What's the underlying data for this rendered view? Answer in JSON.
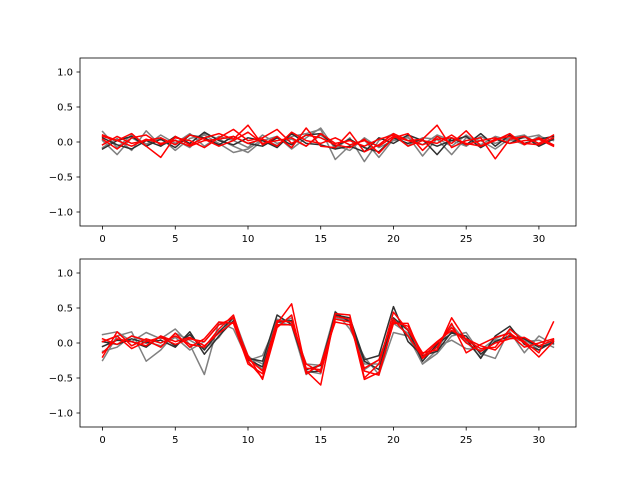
{
  "chart_data": [
    {
      "type": "line",
      "title": "",
      "xlabel": "",
      "ylabel": "",
      "xlim": [
        -1.55,
        32.55
      ],
      "ylim": [
        -1.2,
        1.2
      ],
      "xticks": [
        0,
        5,
        10,
        15,
        20,
        25,
        30
      ],
      "yticks": [
        -1.0,
        -0.5,
        0.0,
        0.5,
        1.0
      ],
      "grid": false,
      "x": [
        0,
        1,
        2,
        3,
        4,
        5,
        6,
        7,
        8,
        9,
        10,
        11,
        12,
        13,
        14,
        15,
        16,
        17,
        18,
        19,
        20,
        21,
        22,
        23,
        24,
        25,
        26,
        27,
        28,
        29,
        30,
        31
      ],
      "series": [
        {
          "color": "#808080",
          "values": [
            0.15,
            -0.08,
            0.1,
            -0.03,
            0.06,
            -0.12,
            0.05,
            0.1,
            -0.02,
            -0.15,
            -0.1,
            0.04,
            -0.05,
            0.08,
            0.12,
            0.18,
            -0.25,
            -0.05,
            0.03,
            -0.22,
            0.04,
            0.08,
            -0.2,
            0.05,
            -0.06,
            0.1,
            -0.04,
            0.08,
            0.02,
            0.06,
            0.1,
            -0.05
          ]
        },
        {
          "color": "#808080",
          "values": [
            -0.08,
            0.05,
            -0.12,
            0.16,
            -0.05,
            0.03,
            -0.08,
            0.12,
            0.04,
            -0.06,
            -0.15,
            0.02,
            0.08,
            -0.1,
            0.06,
            0.2,
            -0.1,
            0.06,
            -0.28,
            0.02,
            0.12,
            -0.05,
            0.06,
            0.04,
            -0.18,
            0.06,
            0.02,
            -0.1,
            0.05,
            -0.04,
            0.08,
            0.02
          ]
        },
        {
          "color": "#808080",
          "values": [
            0.02,
            -0.18,
            0.06,
            -0.05,
            0.1,
            -0.02,
            0.12,
            -0.06,
            0.08,
            0.02,
            -0.08,
            0.1,
            -0.02,
            0.04,
            -0.06,
            0.1,
            -0.05,
            -0.12,
            0.06,
            -0.08,
            0.02,
            0.06,
            -0.04,
            0.1,
            0.02,
            -0.06,
            0.08,
            -0.02,
            0.06,
            0.1,
            -0.04,
            0.06
          ]
        },
        {
          "color": "#303030",
          "values": [
            -0.1,
            0.02,
            0.08,
            -0.06,
            0.04,
            -0.08,
            0.1,
            0.06,
            -0.04,
            0.08,
            -0.02,
            -0.06,
            0.06,
            -0.04,
            0.1,
            0.12,
            -0.06,
            0.04,
            -0.08,
            -0.14,
            0.06,
            -0.02,
            0.04,
            -0.18,
            0.06,
            -0.04,
            0.12,
            -0.06,
            0.1,
            -0.02,
            0.04,
            0.08
          ]
        },
        {
          "color": "#303030",
          "values": [
            0.06,
            -0.04,
            -0.1,
            0.02,
            -0.06,
            0.08,
            -0.02,
            0.14,
            0.02,
            -0.04,
            0.06,
            0.02,
            -0.08,
            0.12,
            -0.02,
            -0.04,
            -0.1,
            -0.06,
            -0.14,
            0.06,
            -0.02,
            0.1,
            0.02,
            -0.06,
            0.02,
            0.08,
            -0.08,
            0.04,
            -0.02,
            0.08,
            -0.06,
            0.04
          ]
        },
        {
          "color": "#ff0000",
          "values": [
            0.1,
            0.02,
            0.12,
            -0.06,
            -0.22,
            0.08,
            -0.04,
            0.06,
            0.12,
            0.04,
            0.24,
            -0.04,
            0.08,
            -0.08,
            0.2,
            -0.06,
            -0.08,
            0.14,
            -0.14,
            -0.04,
            0.12,
            0.02,
            0.04,
            0.24,
            -0.08,
            0.02,
            0.06,
            -0.24,
            0.04,
            0.08,
            -0.02,
            0.1
          ]
        },
        {
          "color": "#ff0000",
          "values": [
            0.04,
            -0.1,
            0.06,
            0.1,
            -0.04,
            0.06,
            0.02,
            -0.08,
            0.06,
            0.18,
            0.02,
            0.06,
            0.18,
            -0.02,
            0.1,
            0.06,
            -0.04,
            -0.08,
            0.04,
            -0.16,
            0.06,
            0.12,
            -0.12,
            0.08,
            -0.02,
            0.16,
            -0.06,
            0.02,
            0.12,
            -0.04,
            0.06,
            -0.04
          ]
        },
        {
          "color": "#ff0000",
          "values": [
            -0.04,
            0.08,
            -0.02,
            0.02,
            0.06,
            -0.04,
            0.1,
            0.04,
            -0.06,
            0.02,
            0.14,
            -0.02,
            0.02,
            0.06,
            -0.06,
            0.12,
            -0.02,
            0.02,
            -0.06,
            0.04,
            0.1,
            -0.06,
            0.02,
            -0.02,
            0.1,
            -0.04,
            0.02,
            0.06,
            -0.02,
            0.02,
            0.04,
            -0.06
          ]
        },
        {
          "color": "#ff0000",
          "values": [
            0.08,
            0.02,
            -0.06,
            0.04,
            -0.02,
            0.02,
            -0.06,
            0.02,
            0.04,
            0.08,
            -0.02,
            0.04,
            -0.06,
            0.14,
            0.02,
            -0.02,
            0.06,
            -0.04,
            0.02,
            -0.06,
            0.08,
            0.02,
            -0.04,
            0.04,
            0.06,
            -0.02,
            -0.06,
            0.04,
            0.08,
            -0.02,
            -0.04,
            0.06
          ]
        }
      ]
    },
    {
      "type": "line",
      "title": "",
      "xlabel": "",
      "ylabel": "",
      "xlim": [
        -1.55,
        32.55
      ],
      "ylim": [
        -1.2,
        1.2
      ],
      "xticks": [
        0,
        5,
        10,
        15,
        20,
        25,
        30
      ],
      "yticks": [
        -1.0,
        -0.5,
        0.0,
        0.5,
        1.0
      ],
      "grid": false,
      "x": [
        0,
        1,
        2,
        3,
        4,
        5,
        6,
        7,
        8,
        9,
        10,
        11,
        12,
        13,
        14,
        15,
        16,
        17,
        18,
        19,
        20,
        21,
        22,
        23,
        24,
        25,
        26,
        27,
        28,
        29,
        30,
        31
      ],
      "series": [
        {
          "color": "#808080",
          "values": [
            0.12,
            0.16,
            0.02,
            0.15,
            0.06,
            0.2,
            -0.02,
            -0.45,
            0.3,
            0.2,
            -0.25,
            -0.18,
            0.3,
            0.25,
            -0.45,
            -0.3,
            0.45,
            0.2,
            -0.2,
            -0.45,
            0.15,
            0.1,
            -0.3,
            -0.15,
            0.1,
            0.15,
            -0.15,
            -0.22,
            0.2,
            0.05,
            -0.1,
            0.05
          ]
        },
        {
          "color": "#808080",
          "values": [
            -0.25,
            0.1,
            0.16,
            -0.26,
            -0.1,
            0.14,
            0.04,
            -0.08,
            0.08,
            0.38,
            -0.18,
            -0.38,
            0.24,
            0.36,
            -0.4,
            -0.44,
            0.4,
            0.3,
            -0.38,
            -0.24,
            0.32,
            0.2,
            -0.2,
            -0.05,
            0.04,
            -0.08,
            -0.1,
            0.06,
            0.16,
            -0.14,
            0.1,
            -0.02
          ]
        },
        {
          "color": "#808080",
          "values": [
            -0.12,
            -0.06,
            0.1,
            0.02,
            -0.04,
            0.08,
            -0.1,
            0.02,
            0.26,
            0.3,
            -0.2,
            -0.3,
            0.34,
            0.3,
            -0.3,
            -0.32,
            0.36,
            0.32,
            -0.3,
            -0.3,
            0.28,
            0.14,
            -0.3,
            -0.1,
            0.26,
            0.02,
            -0.2,
            0.04,
            0.08,
            0.02,
            0.04,
            -0.06
          ]
        },
        {
          "color": "#303030",
          "values": [
            -0.05,
            0.04,
            0.02,
            -0.06,
            0.1,
            -0.04,
            0.12,
            -0.1,
            0.16,
            0.36,
            -0.22,
            -0.26,
            0.4,
            0.26,
            -0.38,
            -0.32,
            0.4,
            0.36,
            -0.24,
            -0.18,
            0.52,
            0.02,
            -0.18,
            -0.12,
            0.16,
            0.06,
            -0.22,
            0.1,
            0.24,
            -0.02,
            -0.1,
            0.02
          ]
        },
        {
          "color": "#303030",
          "values": [
            0.02,
            -0.02,
            0.06,
            0.0,
            0.04,
            -0.06,
            0.16,
            -0.16,
            0.1,
            0.32,
            -0.24,
            -0.34,
            0.3,
            0.32,
            -0.42,
            -0.4,
            0.44,
            0.3,
            -0.26,
            -0.38,
            0.36,
            0.18,
            -0.26,
            -0.02,
            0.14,
            0.1,
            -0.16,
            0.02,
            0.1,
            0.06,
            -0.06,
            0.0
          ]
        },
        {
          "color": "#ff0000",
          "values": [
            -0.2,
            0.16,
            -0.04,
            0.06,
            0.0,
            0.1,
            -0.02,
            -0.06,
            0.2,
            0.4,
            -0.26,
            -0.5,
            0.28,
            0.56,
            -0.4,
            -0.6,
            0.42,
            0.4,
            -0.5,
            -0.3,
            0.44,
            0.18,
            -0.14,
            -0.1,
            0.36,
            0.04,
            -0.08,
            -0.06,
            0.2,
            0.02,
            -0.14,
            0.3
          ]
        },
        {
          "color": "#ff0000",
          "values": [
            0.02,
            0.1,
            -0.08,
            0.02,
            0.08,
            -0.02,
            0.06,
            0.02,
            0.26,
            0.36,
            -0.22,
            -0.4,
            0.32,
            0.3,
            -0.36,
            -0.38,
            0.38,
            0.34,
            -0.52,
            -0.42,
            0.28,
            0.28,
            -0.22,
            -0.06,
            0.28,
            -0.14,
            -0.02,
            0.08,
            0.14,
            0.0,
            -0.2,
            0.02
          ]
        },
        {
          "color": "#ff0000",
          "values": [
            -0.14,
            0.06,
            0.02,
            -0.04,
            0.1,
            0.02,
            0.08,
            -0.04,
            0.14,
            0.3,
            -0.18,
            -0.52,
            0.22,
            0.4,
            -0.44,
            -0.3,
            0.3,
            0.26,
            -0.36,
            -0.24,
            0.34,
            0.1,
            -0.2,
            0.0,
            0.22,
            0.0,
            -0.12,
            0.0,
            0.06,
            0.08,
            -0.04,
            0.04
          ]
        },
        {
          "color": "#ff0000",
          "values": [
            0.06,
            -0.02,
            0.1,
            0.04,
            -0.06,
            0.14,
            -0.06,
            0.06,
            0.3,
            0.28,
            -0.3,
            -0.44,
            0.26,
            0.26,
            -0.3,
            -0.42,
            0.34,
            0.3,
            -0.4,
            -0.46,
            0.3,
            0.24,
            -0.16,
            0.02,
            0.18,
            0.06,
            -0.04,
            -0.1,
            0.12,
            -0.06,
            0.0,
            0.06
          ]
        }
      ]
    }
  ]
}
